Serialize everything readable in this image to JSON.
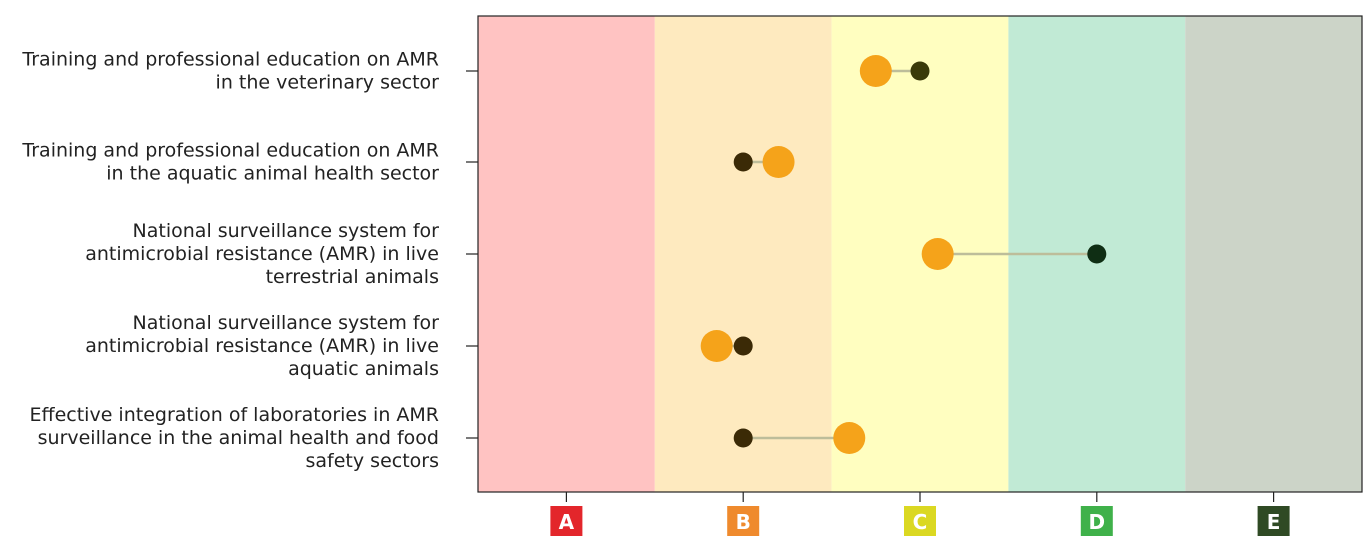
{
  "chart_data": {
    "type": "scatter",
    "title": "",
    "xlabel": "",
    "ylabel": "",
    "grades": [
      "A",
      "B",
      "C",
      "D",
      "E"
    ],
    "grade_badge_colors": [
      "#e3262b",
      "#ef8a2d",
      "#dbd822",
      "#3fb14a",
      "#2f4a24"
    ],
    "band_colors": [
      "#ffc3c2",
      "#feeabf",
      "#fffec0",
      "#c1ead5",
      "#ccd4c8"
    ],
    "categories": [
      {
        "lines": [
          "Training and professional education on AMR",
          "in the veterinary sector"
        ],
        "a": 2.75,
        "b": 3.0,
        "b_color": "#3a3a0a"
      },
      {
        "lines": [
          "Training and professional education on AMR",
          "in the aquatic animal health sector"
        ],
        "a": 2.2,
        "b": 2.0,
        "b_color": "#3b2a06"
      },
      {
        "lines": [
          "National surveillance system for",
          "antimicrobial resistance (AMR) in live",
          "terrestrial animals"
        ],
        "a": 3.1,
        "b": 4.0,
        "b_color": "#0f2e14"
      },
      {
        "lines": [
          "National surveillance system for",
          "antimicrobial resistance (AMR) in live",
          "aquatic animals"
        ],
        "a": 1.85,
        "b": 2.0,
        "b_color": "#3b2a06"
      },
      {
        "lines": [
          "Effective integration of laboratories in AMR",
          "surveillance in the animal health and food",
          "safety sectors"
        ],
        "a": 2.6,
        "b": 2.0,
        "b_color": "#3b2a06"
      }
    ],
    "marker_a_color": "#f5a31a",
    "connector_color": "#bdbd9a",
    "xlim": [
      0.5,
      5.5
    ],
    "grid": false,
    "legend": "none"
  }
}
